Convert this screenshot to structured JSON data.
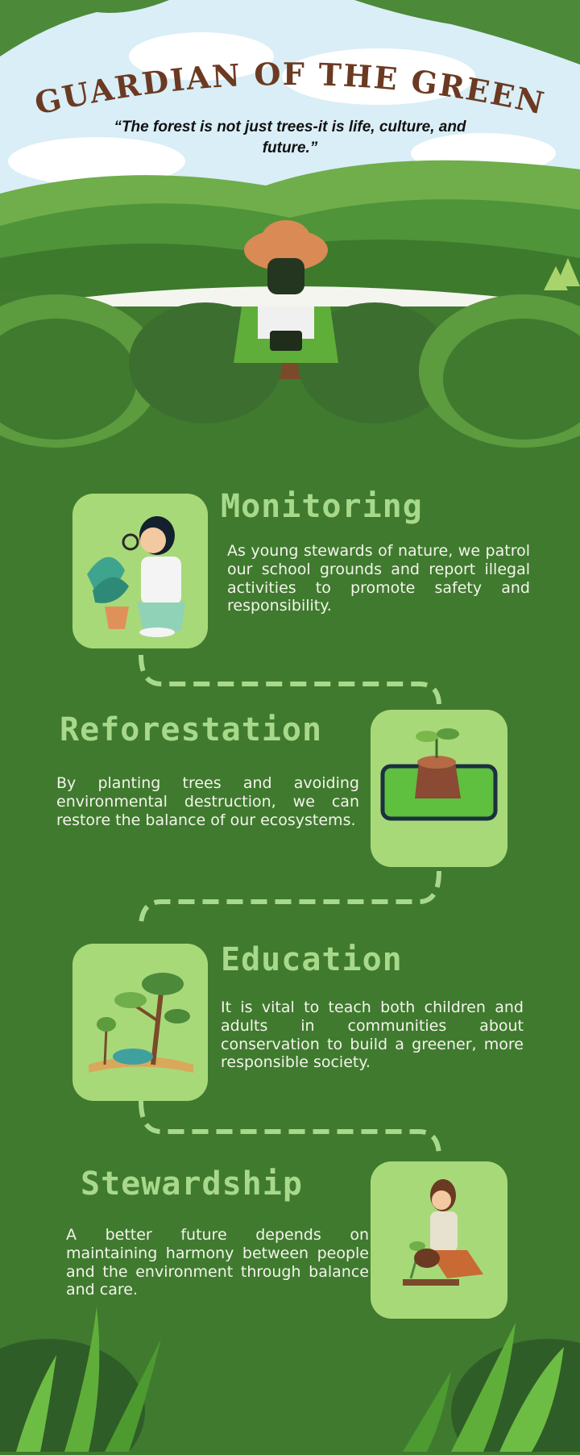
{
  "header": {
    "title": "GUARDIAN OF  THE GREEN",
    "quote": "“The forest is not just trees-it is life, culture, and future.”"
  },
  "sections": [
    {
      "heading": "Monitoring",
      "text": "As young stewards of nature, we patrol our school grounds and report illegal activities to promote safety and responsibility.",
      "icon": "scientist-with-plant-icon"
    },
    {
      "heading": "Reforestation",
      "text": "By planting trees and avoiding environmental destruction, we can restore the balance of our ecosystems.",
      "icon": "sprouting-stump-icon"
    },
    {
      "heading": "Education",
      "text": "It is vital to teach both children and adults in communities about conservation to build a greener, more responsible society.",
      "icon": "book-with-trees-icon"
    },
    {
      "heading": "Stewardship",
      "text": "A better future depends on maintaining harmony between people and the environment through balance and care.",
      "icon": "woman-planting-icon"
    }
  ],
  "colors": {
    "background": "#3f7a2f",
    "heading": "#a8d98a",
    "card": "#a8d979",
    "title": "#6b3a22"
  }
}
